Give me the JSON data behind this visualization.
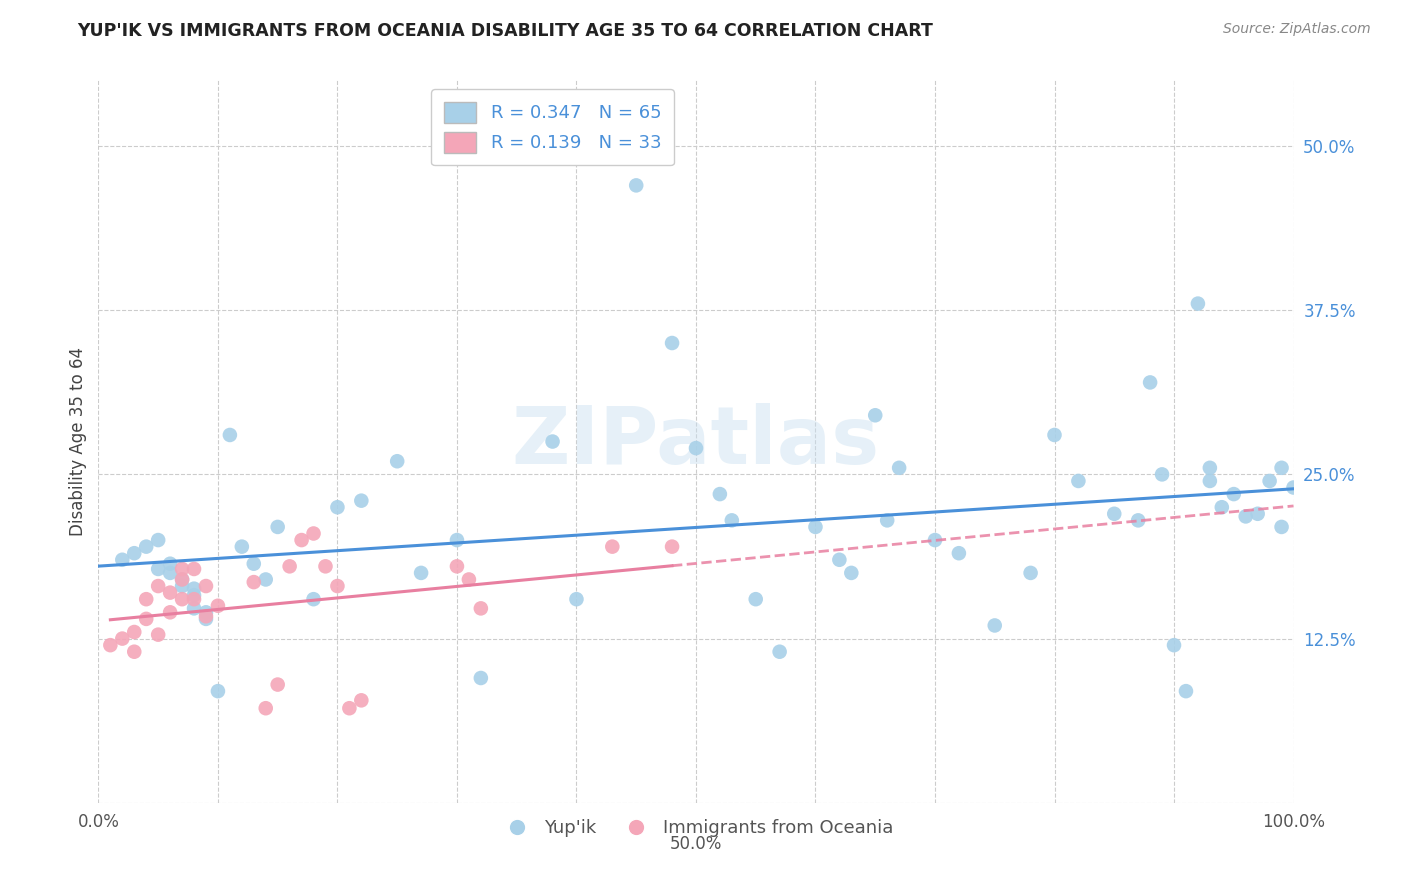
{
  "title": "YUP'IK VS IMMIGRANTS FROM OCEANIA DISABILITY AGE 35 TO 64 CORRELATION CHART",
  "source": "Source: ZipAtlas.com",
  "ylabel": "Disability Age 35 to 64",
  "xlim": [
    0.0,
    1.0
  ],
  "ylim": [
    0.0,
    0.55
  ],
  "xticks": [
    0.0,
    0.1,
    0.2,
    0.3,
    0.4,
    0.5,
    0.6,
    0.7,
    0.8,
    0.9,
    1.0
  ],
  "xticklabels": [
    "0.0%",
    "",
    "",
    "",
    "",
    "",
    "",
    "",
    "",
    "",
    "100.0%"
  ],
  "yticks": [
    0.0,
    0.125,
    0.25,
    0.375,
    0.5
  ],
  "yticklabels": [
    "",
    "12.5%",
    "25.0%",
    "37.5%",
    "50.0%"
  ],
  "legend1_R": "0.347",
  "legend1_N": "65",
  "legend2_R": "0.139",
  "legend2_N": "33",
  "blue_color": "#A8D0E8",
  "pink_color": "#F4A6B8",
  "blue_line_color": "#4A90D9",
  "pink_line_color": "#E87FA0",
  "watermark": "ZIPatlas",
  "blue_x": [
    0.02,
    0.03,
    0.04,
    0.05,
    0.05,
    0.06,
    0.06,
    0.07,
    0.07,
    0.08,
    0.08,
    0.08,
    0.09,
    0.09,
    0.1,
    0.11,
    0.12,
    0.13,
    0.14,
    0.15,
    0.18,
    0.2,
    0.22,
    0.25,
    0.27,
    0.3,
    0.32,
    0.38,
    0.4,
    0.45,
    0.48,
    0.5,
    0.52,
    0.53,
    0.55,
    0.57,
    0.6,
    0.62,
    0.63,
    0.65,
    0.66,
    0.67,
    0.7,
    0.72,
    0.75,
    0.78,
    0.8,
    0.82,
    0.85,
    0.87,
    0.88,
    0.89,
    0.9,
    0.91,
    0.92,
    0.93,
    0.93,
    0.94,
    0.95,
    0.96,
    0.97,
    0.98,
    0.99,
    0.99,
    1.0
  ],
  "blue_y": [
    0.185,
    0.19,
    0.195,
    0.2,
    0.178,
    0.182,
    0.175,
    0.17,
    0.165,
    0.163,
    0.158,
    0.148,
    0.145,
    0.14,
    0.085,
    0.28,
    0.195,
    0.182,
    0.17,
    0.21,
    0.155,
    0.225,
    0.23,
    0.26,
    0.175,
    0.2,
    0.095,
    0.275,
    0.155,
    0.47,
    0.35,
    0.27,
    0.235,
    0.215,
    0.155,
    0.115,
    0.21,
    0.185,
    0.175,
    0.295,
    0.215,
    0.255,
    0.2,
    0.19,
    0.135,
    0.175,
    0.28,
    0.245,
    0.22,
    0.215,
    0.32,
    0.25,
    0.12,
    0.085,
    0.38,
    0.245,
    0.255,
    0.225,
    0.235,
    0.218,
    0.22,
    0.245,
    0.21,
    0.255,
    0.24
  ],
  "pink_x": [
    0.01,
    0.02,
    0.03,
    0.03,
    0.04,
    0.04,
    0.05,
    0.05,
    0.06,
    0.06,
    0.07,
    0.07,
    0.07,
    0.08,
    0.08,
    0.09,
    0.09,
    0.1,
    0.13,
    0.14,
    0.15,
    0.16,
    0.17,
    0.18,
    0.19,
    0.2,
    0.21,
    0.22,
    0.3,
    0.31,
    0.32,
    0.43,
    0.48
  ],
  "pink_y": [
    0.12,
    0.125,
    0.13,
    0.115,
    0.14,
    0.155,
    0.165,
    0.128,
    0.145,
    0.16,
    0.17,
    0.178,
    0.155,
    0.178,
    0.155,
    0.165,
    0.142,
    0.15,
    0.168,
    0.072,
    0.09,
    0.18,
    0.2,
    0.205,
    0.18,
    0.165,
    0.072,
    0.078,
    0.18,
    0.17,
    0.148,
    0.195,
    0.195
  ]
}
